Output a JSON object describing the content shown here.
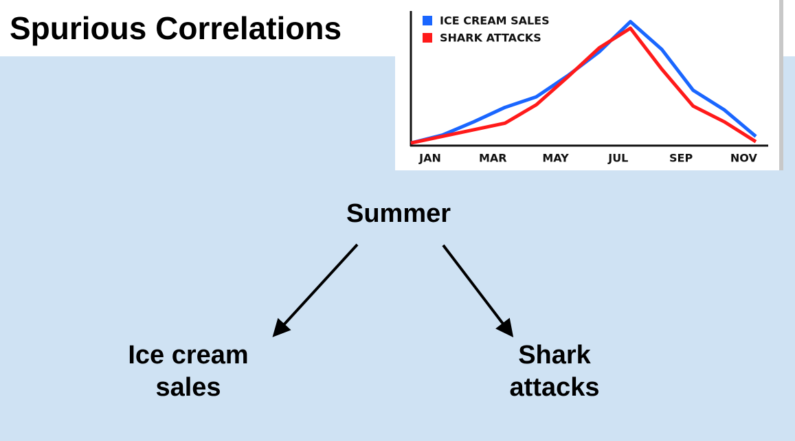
{
  "title": "Spurious Correlations",
  "chart_data": {
    "type": "line",
    "categories": [
      "JAN",
      null,
      "MAR",
      null,
      "MAY",
      null,
      "JUL",
      null,
      "SEP",
      null,
      "NOV",
      null
    ],
    "series": [
      {
        "name": "ICE CREAM SALES",
        "color": "#1a66ff",
        "values": [
          2,
          8,
          18,
          29,
          37,
          53,
          71,
          94,
          73,
          42,
          27,
          7
        ]
      },
      {
        "name": "SHARK ATTACKS",
        "color": "#ff1a1a",
        "values": [
          2,
          7,
          12,
          17,
          31,
          52,
          74,
          89,
          58,
          30,
          18,
          3
        ]
      }
    ],
    "ylim": [
      0,
      100
    ]
  },
  "nodes": [
    {
      "label": "Summer"
    },
    {
      "label": "Ice cream sales"
    },
    {
      "label": "Shark attacks"
    }
  ]
}
